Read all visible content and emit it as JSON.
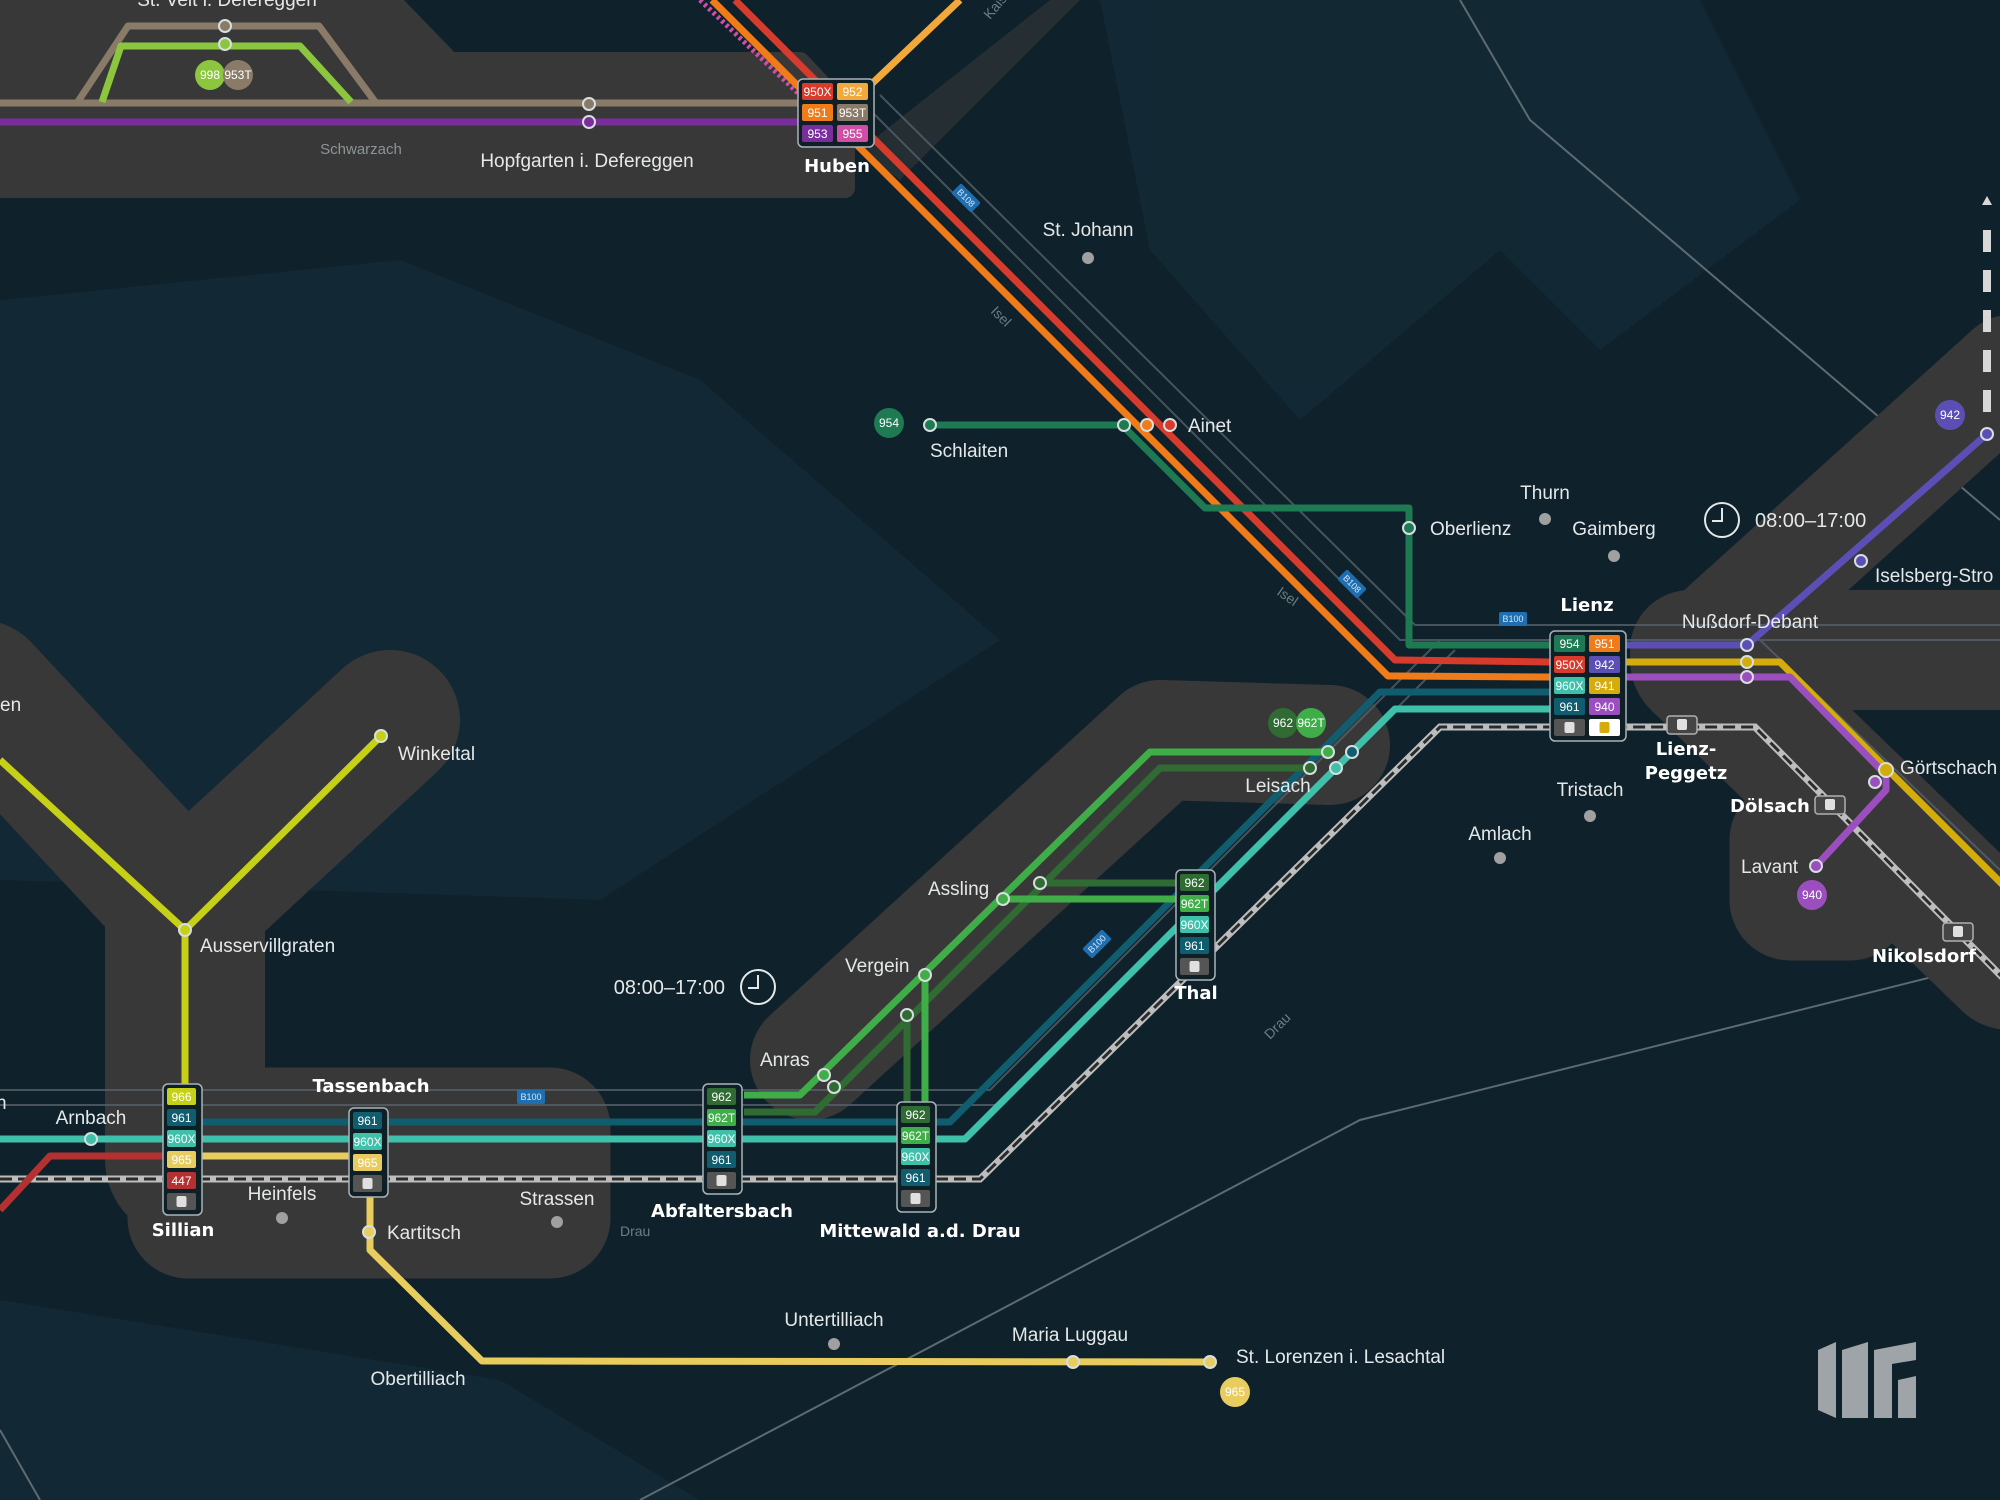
{
  "map": {
    "background": "#0f212a",
    "land_area": "#393838",
    "route_colors": {
      "950X": "#d83a2c",
      "952": "#f2a83a",
      "951": "#ef7b1b",
      "953T": "#8a7b69",
      "953": "#7a2e9e",
      "955": "#d04ea6",
      "954": "#1d7a52",
      "942": "#5b4fb6",
      "960X": "#3ec0ab",
      "941": "#d4ad0c",
      "961": "#0f5d6f",
      "940": "#9b4fbe",
      "962": "#2f6b33",
      "962T": "#3fae49",
      "966": "#c6d016",
      "965": "#e8cd5e",
      "447": "#b43131",
      "998": "#8cc63f"
    }
  },
  "hubs": [
    {
      "name": "Huben",
      "rows": [
        [
          "950X",
          "952"
        ],
        [
          "951",
          "953T"
        ],
        [
          "953",
          "955"
        ]
      ]
    },
    {
      "name": "Lienz",
      "rows": [
        [
          "954",
          "951"
        ],
        [
          "950X",
          "942"
        ],
        [
          "960X",
          "941"
        ],
        [
          "961",
          "940"
        ],
        [
          "rail-icon",
          "bus-icon"
        ]
      ]
    },
    {
      "name": "Sillian",
      "rows": [
        [
          "966"
        ],
        [
          "961"
        ],
        [
          "960X"
        ],
        [
          "965"
        ],
        [
          "447"
        ],
        [
          "rail-icon"
        ]
      ]
    },
    {
      "name": "Tassenbach",
      "rows": [
        [
          "961"
        ],
        [
          "960X"
        ],
        [
          "965"
        ],
        [
          "rail-icon"
        ]
      ]
    },
    {
      "name": "Abfaltersbach",
      "rows": [
        [
          "962"
        ],
        [
          "962T"
        ],
        [
          "960X"
        ],
        [
          "961"
        ],
        [
          "rail-icon"
        ]
      ]
    },
    {
      "name": "Mittewald a.d. Drau",
      "rows": [
        [
          "962"
        ],
        [
          "962T"
        ],
        [
          "960X"
        ],
        [
          "961"
        ],
        [
          "rail-icon"
        ]
      ]
    },
    {
      "name": "Thal",
      "rows": [
        [
          "962"
        ],
        [
          "962T"
        ],
        [
          "960X"
        ],
        [
          "961"
        ],
        [
          "rail-icon"
        ]
      ]
    }
  ],
  "route_markers": [
    "998",
    "953T",
    "954",
    "962",
    "962T",
    "942",
    "940",
    "965"
  ],
  "stations": {
    "st_veit": "St. Veit i. Defereggen",
    "schwarzach": "Schwarzach",
    "hopfgarten": "Hopfgarten i. Defereggen",
    "st_johann": "St. Johann",
    "schlaiten": "Schlaiten",
    "ainet": "Ainet",
    "thurn": "Thurn",
    "oberlienz": "Oberlienz",
    "gaimberg": "Gaimberg",
    "nussdorf": "Nußdorf-Debant",
    "iselsberg": "Iselsberg-Stro",
    "lienz_peggetz_1": "Lienz-",
    "lienz_peggetz_2": "Peggetz",
    "goertschach": "Görtschach",
    "doelsach": "Dölsach",
    "lavant": "Lavant",
    "nikolsdorf": "Nikolsdorf",
    "tristach": "Tristach",
    "amlach": "Amlach",
    "leisach": "Leisach",
    "assling": "Assling",
    "vergein": "Vergein",
    "anras": "Anras",
    "winkeltal": "Winkeltal",
    "ausservillgraten": "Ausservillgraten",
    "arnbach": "Arnbach",
    "heinfels": "Heinfels",
    "kartitsch": "Kartitsch",
    "strassen": "Strassen",
    "obertilliach": "Obertilliach",
    "untertilliach": "Untertilliach",
    "maria_luggau": "Maria Luggau",
    "st_lorenzen": "St. Lorenzen i. Lesachtal",
    "cut_left_1": "en",
    "cut_left_2": "n"
  },
  "service_hours": [
    "08:00–17:00",
    "08:00–17:00"
  ],
  "road_labels": [
    "B108",
    "B108",
    "B100",
    "B100",
    "B100",
    "Kaiser"
  ],
  "river_labels": [
    "Isel",
    "Isel",
    "Drau",
    "Drau"
  ]
}
